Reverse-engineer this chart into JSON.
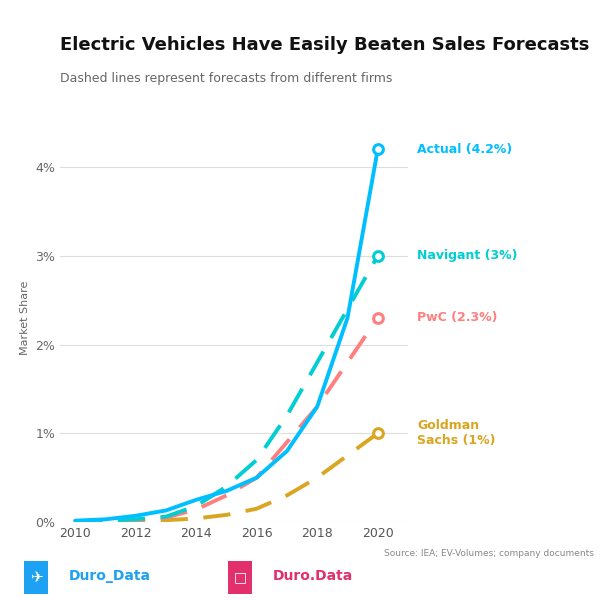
{
  "title": "Electric Vehicles Have Easily Beaten Sales Forecasts",
  "subtitle": "Dashed lines represent forecasts from different firms",
  "ylabel": "Market Share",
  "source": "Source: IEA; EV-Volumes; company documents",
  "twitter": "Duro_Data",
  "instagram": "Duro.Data",
  "ylim": [
    0,
    0.046
  ],
  "yticks": [
    0,
    0.01,
    0.02,
    0.03,
    0.04
  ],
  "ytick_labels": [
    "0%",
    "1%",
    "2%",
    "3%",
    "4%"
  ],
  "xticks": [
    2010,
    2012,
    2014,
    2016,
    2018,
    2020
  ],
  "actual": {
    "years": [
      2010,
      2011,
      2012,
      2013,
      2014,
      2015,
      2016,
      2017,
      2018,
      2019,
      2020
    ],
    "values": [
      0.00015,
      0.0003,
      0.0007,
      0.0013,
      0.0025,
      0.0035,
      0.005,
      0.008,
      0.013,
      0.023,
      0.042
    ],
    "color": "#00BFFF",
    "label": "Actual (4.2%)",
    "linewidth": 2.8,
    "linestyle": "solid"
  },
  "navigant": {
    "years": [
      2010,
      2011,
      2012,
      2013,
      2014,
      2015,
      2016,
      2017,
      2018,
      2019,
      2020
    ],
    "values": [
      0.0001,
      0.00015,
      0.0003,
      0.0006,
      0.0018,
      0.004,
      0.007,
      0.012,
      0.018,
      0.024,
      0.03
    ],
    "color": "#00CED1",
    "label": "Navigant (3%)",
    "linewidth": 2.8,
    "linestyle": "dashed"
  },
  "pwc": {
    "years": [
      2010,
      2011,
      2012,
      2013,
      2014,
      2015,
      2016,
      2017,
      2018,
      2019,
      2020
    ],
    "values": [
      0.0001,
      0.00012,
      0.0002,
      0.0005,
      0.0014,
      0.003,
      0.005,
      0.009,
      0.013,
      0.018,
      0.023
    ],
    "color": "#FF7F7F",
    "label": "PwC (2.3%)",
    "linewidth": 2.8,
    "linestyle": "dashed"
  },
  "goldman": {
    "years": [
      2010,
      2011,
      2012,
      2013,
      2014,
      2015,
      2016,
      2017,
      2018,
      2019,
      2020
    ],
    "values": [
      5e-05,
      0.0001,
      0.00015,
      0.0002,
      0.0004,
      0.0008,
      0.0015,
      0.003,
      0.005,
      0.0075,
      0.01
    ],
    "color": "#DAA520",
    "label": "Goldman\nSachs (1%)",
    "linewidth": 2.8,
    "linestyle": "dashed"
  },
  "background_color": "#FFFFFF",
  "grid_color": "#DDDDDD",
  "title_fontsize": 13,
  "subtitle_fontsize": 9,
  "label_fontsize": 9,
  "tick_fontsize": 9
}
